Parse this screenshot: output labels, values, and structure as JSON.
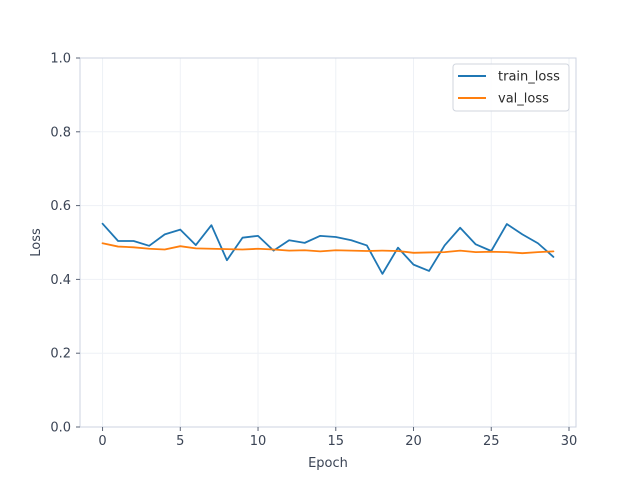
{
  "chart_data": {
    "type": "line",
    "title": "",
    "xlabel": "Epoch",
    "ylabel": "Loss",
    "xlim": [
      -1.45,
      30.45
    ],
    "ylim": [
      0.0,
      1.0
    ],
    "x_ticks": [
      0,
      5,
      10,
      15,
      20,
      25,
      30
    ],
    "y_ticks": [
      0.0,
      0.2,
      0.4,
      0.6,
      0.8,
      1.0
    ],
    "x_tick_labels": [
      "0",
      "5",
      "10",
      "15",
      "20",
      "25",
      "30"
    ],
    "y_tick_labels": [
      "0.0",
      "0.2",
      "0.4",
      "0.6",
      "0.8",
      "1.0"
    ],
    "grid": true,
    "legend_position": "top-right",
    "x": [
      0,
      1,
      2,
      3,
      4,
      5,
      6,
      7,
      8,
      9,
      10,
      11,
      12,
      13,
      14,
      15,
      16,
      17,
      18,
      19,
      20,
      21,
      22,
      23,
      24,
      25,
      26,
      27,
      28,
      29
    ],
    "series": [
      {
        "name": "train_loss",
        "color": "#1f77b4",
        "values": [
          0.551,
          0.504,
          0.504,
          0.491,
          0.522,
          0.535,
          0.493,
          0.547,
          0.452,
          0.513,
          0.518,
          0.478,
          0.506,
          0.499,
          0.518,
          0.515,
          0.506,
          0.492,
          0.415,
          0.486,
          0.44,
          0.423,
          0.492,
          0.54,
          0.495,
          0.477,
          0.55,
          0.522,
          0.498,
          0.461
        ]
      },
      {
        "name": "val_loss",
        "color": "#ff7f0e",
        "values": [
          0.498,
          0.489,
          0.487,
          0.483,
          0.481,
          0.49,
          0.484,
          0.483,
          0.482,
          0.481,
          0.483,
          0.481,
          0.478,
          0.479,
          0.476,
          0.479,
          0.478,
          0.477,
          0.478,
          0.477,
          0.472,
          0.473,
          0.474,
          0.478,
          0.474,
          0.475,
          0.474,
          0.471,
          0.474,
          0.476
        ]
      }
    ]
  }
}
